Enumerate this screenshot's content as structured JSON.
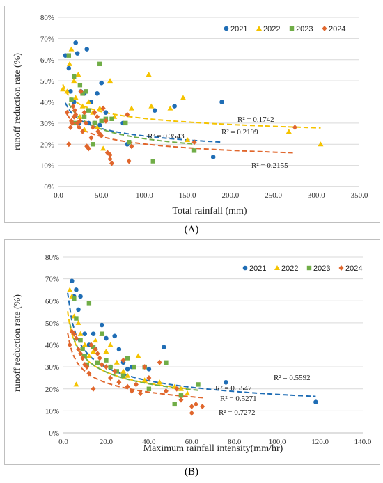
{
  "captions": {
    "a": "(A)",
    "b": "(B)"
  },
  "colors": {
    "2021": "#1f6db5",
    "2022": "#f5c300",
    "2023": "#70ad47",
    "2024": "#e0662c"
  },
  "chart_data": [
    {
      "type": "scatter",
      "panel": "A",
      "xlabel": "Total rainfall (mm)",
      "ylabel": "runoff reduction rate (%)",
      "xlim": [
        0,
        350
      ],
      "ylim": [
        0,
        80
      ],
      "xticks": [
        "0.0",
        "50.0",
        "100.0",
        "150.0",
        "200.0",
        "250.0",
        "300.0",
        "350.0"
      ],
      "yticks": [
        "0%",
        "10%",
        "20%",
        "30%",
        "40%",
        "50%",
        "60%",
        "70%",
        "80%"
      ],
      "legend": [
        "2021",
        "2022",
        "2023",
        "2024"
      ],
      "legend_position": "top-right",
      "series": [
        {
          "name": "2021",
          "marker": "circle",
          "x": [
            8,
            12,
            14,
            18,
            20,
            22,
            24,
            26,
            30,
            33,
            35,
            38,
            42,
            45,
            48,
            50,
            55,
            75,
            80,
            112,
            135,
            180,
            190
          ],
          "y": [
            62,
            56,
            45,
            40,
            68,
            63,
            30,
            45,
            44,
            65,
            30,
            40,
            30,
            44,
            29,
            49,
            35,
            30,
            20,
            36,
            38,
            14,
            40
          ]
        },
        {
          "name": "2022",
          "marker": "triangle",
          "x": [
            5,
            10,
            13,
            15,
            18,
            20,
            23,
            25,
            28,
            30,
            35,
            40,
            45,
            48,
            52,
            60,
            65,
            85,
            105,
            108,
            130,
            145,
            150,
            268,
            305
          ],
          "y": [
            46,
            45,
            58,
            65,
            50,
            42,
            53,
            33,
            38,
            27,
            40,
            35,
            28,
            37,
            18,
            50,
            33,
            37,
            53,
            38,
            37,
            42,
            22,
            26,
            20
          ]
        },
        {
          "name": "2023",
          "marker": "square",
          "x": [
            12,
            15,
            18,
            20,
            25,
            28,
            30,
            32,
            35,
            40,
            42,
            48,
            50,
            55,
            62,
            78,
            82,
            110,
            158
          ],
          "y": [
            62,
            41,
            52,
            30,
            48,
            44,
            33,
            45,
            36,
            20,
            30,
            58,
            31,
            32,
            32,
            30,
            21,
            12,
            17
          ]
        },
        {
          "name": "2024",
          "marker": "diamond",
          "x": [
            10,
            12,
            14,
            15,
            16,
            17,
            18,
            19,
            20,
            22,
            24,
            25,
            26,
            28,
            30,
            32,
            33,
            35,
            38,
            40,
            42,
            45,
            46,
            48,
            50,
            52,
            55,
            57,
            60,
            60,
            62,
            80,
            82,
            85,
            158,
            275
          ],
          "y": [
            35,
            20,
            28,
            31,
            30,
            38,
            33,
            36,
            34,
            30,
            28,
            31,
            45,
            26,
            35,
            30,
            19,
            18,
            23,
            28,
            35,
            33,
            26,
            25,
            24,
            37,
            31,
            16,
            13,
            15,
            11,
            34,
            12,
            19,
            21,
            28
          ]
        }
      ],
      "annotations": [
        "R² = 0.1742",
        "R² = 0.3543",
        "R² = 0.2199",
        "R² = 0.2155"
      ]
    },
    {
      "type": "scatter",
      "panel": "B",
      "xlabel": "Maximum rainfall  intensity(mm/hr)",
      "ylabel": "runoff reduction rate (%)",
      "xlim": [
        0,
        140
      ],
      "ylim": [
        0,
        80
      ],
      "xticks": [
        "0.0",
        "20.0",
        "40.0",
        "60.0",
        "80.0",
        "100.0",
        "120.0",
        "140.0"
      ],
      "yticks": [
        "0%",
        "10%",
        "20%",
        "30%",
        "40%",
        "50%",
        "60%",
        "70%",
        "80%"
      ],
      "legend": [
        "2021",
        "2022",
        "2023",
        "2024"
      ],
      "legend_position": "top-right",
      "series": [
        {
          "name": "2021",
          "marker": "circle",
          "x": [
            4,
            5,
            6,
            7,
            8,
            10,
            12,
            14,
            15,
            18,
            20,
            22,
            24,
            26,
            28,
            30,
            32,
            38,
            40,
            47,
            76,
            118
          ],
          "y": [
            69,
            62,
            65,
            56,
            62,
            45,
            40,
            45,
            38,
            49,
            43,
            30,
            44,
            38,
            32,
            29,
            30,
            30,
            29,
            39,
            23,
            14
          ]
        },
        {
          "name": "2022",
          "marker": "triangle",
          "x": [
            3,
            4,
            5,
            6,
            7,
            8,
            10,
            12,
            14,
            15,
            18,
            20,
            22,
            25,
            28,
            30,
            35,
            38,
            45,
            52,
            55,
            58
          ],
          "y": [
            65,
            62,
            53,
            22,
            50,
            45,
            40,
            35,
            37,
            42,
            45,
            37,
            40,
            32,
            28,
            26,
            35,
            24,
            23,
            21,
            20,
            18
          ]
        },
        {
          "name": "2023",
          "marker": "square",
          "x": [
            5,
            6,
            8,
            9,
            10,
            11,
            12,
            14,
            16,
            18,
            20,
            22,
            25,
            28,
            30,
            33,
            38,
            40,
            48,
            52,
            55,
            63
          ],
          "y": [
            61,
            52,
            42,
            38,
            35,
            31,
            59,
            39,
            32,
            45,
            33,
            30,
            28,
            26,
            34,
            30,
            30,
            20,
            32,
            13,
            17,
            22
          ]
        },
        {
          "name": "2024",
          "marker": "diamond",
          "x": [
            3,
            4,
            5,
            6,
            7,
            8,
            9,
            10,
            11,
            12,
            13,
            14,
            15,
            16,
            17,
            18,
            20,
            22,
            24,
            26,
            28,
            30,
            32,
            34,
            36,
            38,
            40,
            45,
            48,
            53,
            55,
            60,
            60,
            62,
            65
          ],
          "y": [
            40,
            46,
            45,
            43,
            38,
            36,
            34,
            31,
            30,
            27,
            40,
            20,
            38,
            36,
            34,
            31,
            30,
            25,
            28,
            23,
            33,
            21,
            19,
            22,
            18,
            30,
            25,
            32,
            19,
            20,
            15,
            12,
            9,
            13,
            12
          ]
        }
      ],
      "annotations": [
        "R² = 0.5592",
        "R² = 0.5547",
        "R² = 0.5271",
        "R² = 0.7272"
      ]
    }
  ]
}
